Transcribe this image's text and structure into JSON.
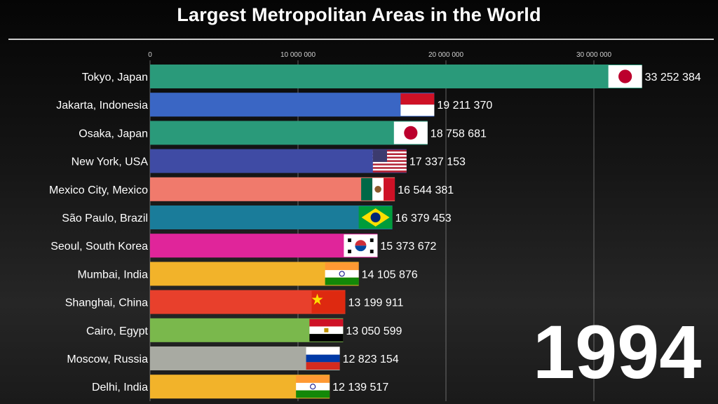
{
  "chart_data": {
    "type": "bar",
    "orientation": "horizontal",
    "title": "Largest Metropolitan Areas in the World",
    "xlim": [
      0,
      35000000
    ],
    "x_ticks": [
      0,
      10000000,
      20000000,
      30000000
    ],
    "x_tick_labels": [
      "0",
      "10 000 000",
      "20 000 000",
      "30 000 000"
    ],
    "grid": true,
    "categories": [
      "Tokyo, Japan",
      "Jakarta, Indonesia",
      "Osaka, Japan",
      "New York, USA",
      "Mexico City, Mexico",
      "São Paulo, Brazil",
      "Seoul, South Korea",
      "Mumbai, India",
      "Shanghai, China",
      "Cairo, Egypt",
      "Moscow, Russia",
      "Delhi, India"
    ],
    "values": [
      33252384,
      19211370,
      18758681,
      17337153,
      16544381,
      16379453,
      15373672,
      14105876,
      13199911,
      13050599,
      12823154,
      12139517
    ],
    "value_labels": [
      "33 252 384",
      "19 211 370",
      "18 758 681",
      "17 337 153",
      "16 544 381",
      "16 379 453",
      "15 373 672",
      "14 105 876",
      "13 199 911",
      "13 050 599",
      "12 823 154",
      "12 139 517"
    ],
    "colors": [
      "#2a9a7a",
      "#3a66c4",
      "#2a9a7a",
      "#3f4ba4",
      "#f07a6c",
      "#1a7c9a",
      "#e0259a",
      "#f2b32a",
      "#e8402c",
      "#7ab84c",
      "#a8aaa2",
      "#f2b32a"
    ],
    "flags": [
      "japan",
      "indonesia",
      "japan",
      "usa",
      "mexico",
      "brazil",
      "south-korea",
      "india",
      "china",
      "egypt",
      "russia",
      "india"
    ],
    "year": "1994"
  }
}
